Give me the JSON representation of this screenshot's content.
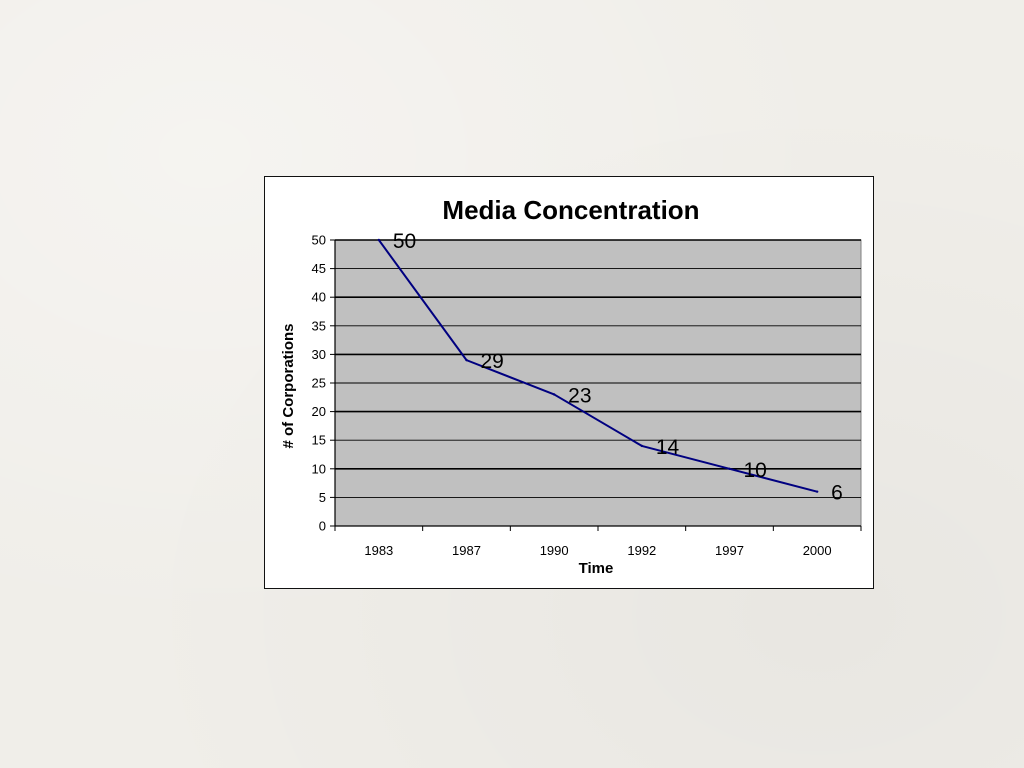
{
  "chart_data": {
    "type": "line",
    "title": "Media Concentration",
    "xlabel": "Time",
    "ylabel": "# of Corporations",
    "categories": [
      "1983",
      "1987",
      "1990",
      "1992",
      "1997",
      "2000"
    ],
    "series": [
      {
        "name": "Corporations",
        "values": [
          50,
          29,
          23,
          14,
          10,
          6
        ]
      }
    ],
    "data_labels": [
      "50",
      "29",
      "23",
      "14",
      "10",
      "6"
    ],
    "ylim": [
      0,
      50
    ],
    "yticks": [
      "0",
      "5",
      "10",
      "15",
      "20",
      "25",
      "30",
      "35",
      "40",
      "45",
      "50"
    ],
    "colors": {
      "plot_background": "#c0c0c0",
      "line": "#000080",
      "gridline": "#000000"
    }
  }
}
